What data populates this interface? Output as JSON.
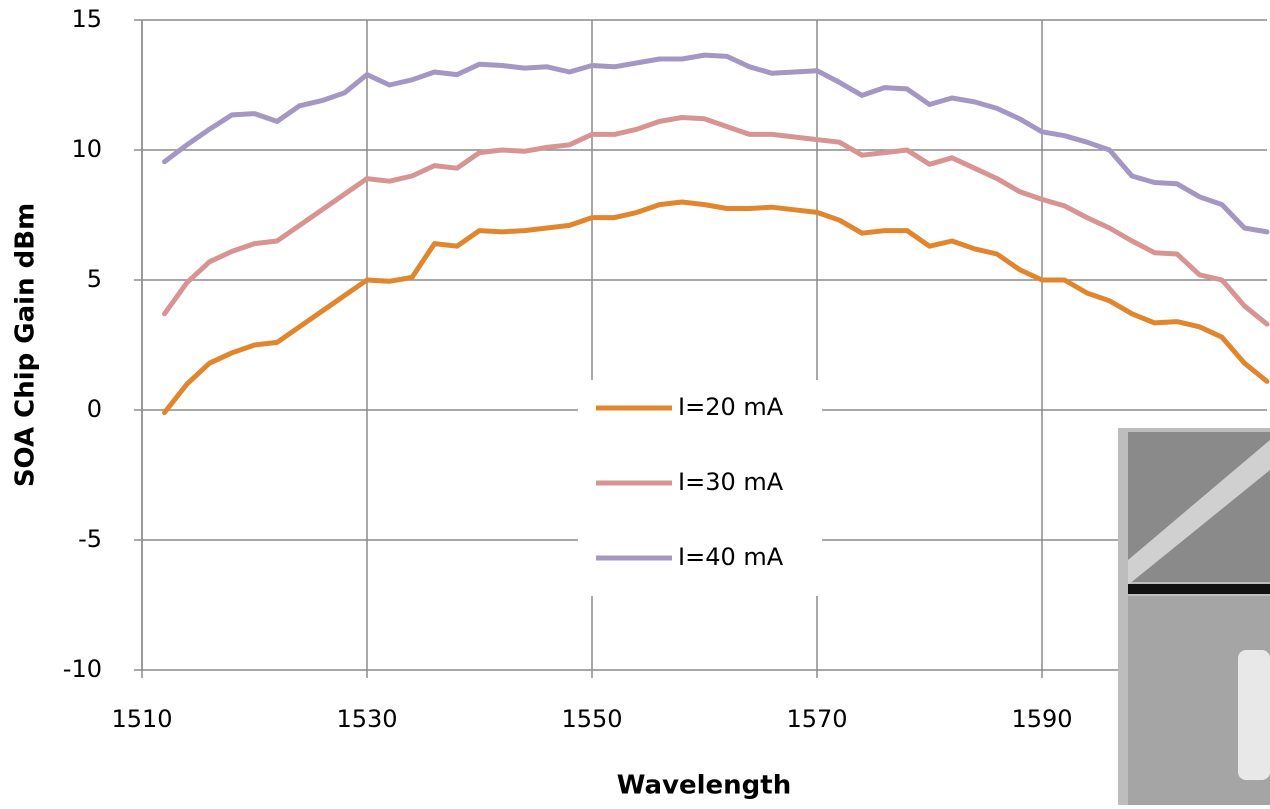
{
  "chart_data": {
    "type": "line",
    "x_label": "Wavelength",
    "y_label": "SOA Chip Gain dBm",
    "x": [
      1512,
      1514,
      1516,
      1518,
      1520,
      1522,
      1524,
      1526,
      1528,
      1530,
      1532,
      1534,
      1536,
      1538,
      1540,
      1542,
      1544,
      1546,
      1548,
      1550,
      1552,
      1554,
      1556,
      1558,
      1560,
      1562,
      1564,
      1566,
      1568,
      1570,
      1572,
      1574,
      1576,
      1578,
      1580,
      1582,
      1584,
      1586,
      1588,
      1590,
      1592,
      1594,
      1596,
      1598,
      1600,
      1602,
      1604,
      1606,
      1608,
      1610
    ],
    "series": [
      {
        "name": "I=20 mA",
        "color": "#e2862e",
        "values": [
          -0.1,
          1.0,
          1.8,
          2.2,
          2.5,
          2.6,
          3.2,
          3.8,
          4.4,
          5.0,
          4.95,
          5.1,
          6.4,
          6.3,
          6.9,
          6.85,
          6.9,
          7.0,
          7.1,
          7.4,
          7.4,
          7.6,
          7.9,
          8.0,
          7.9,
          7.75,
          7.75,
          7.8,
          7.7,
          7.6,
          7.3,
          6.8,
          6.9,
          6.9,
          6.3,
          6.5,
          6.2,
          6.0,
          5.4,
          5.0,
          5.0,
          4.5,
          4.2,
          3.7,
          3.35,
          3.4,
          3.2,
          2.8,
          1.8,
          1.1
        ]
      },
      {
        "name": "I=30 mA",
        "color": "#d79493",
        "values": [
          3.7,
          4.9,
          5.7,
          6.1,
          6.4,
          6.5,
          7.1,
          7.7,
          8.3,
          8.9,
          8.8,
          9.0,
          9.4,
          9.3,
          9.9,
          10.0,
          9.95,
          10.1,
          10.2,
          10.6,
          10.6,
          10.8,
          11.1,
          11.25,
          11.2,
          10.9,
          10.6,
          10.6,
          10.5,
          10.4,
          10.3,
          9.8,
          9.9,
          10.0,
          9.45,
          9.7,
          9.3,
          8.9,
          8.4,
          8.1,
          7.85,
          7.4,
          7.0,
          6.5,
          6.05,
          6.0,
          5.2,
          5.0,
          4.0,
          3.3
        ]
      },
      {
        "name": "I=40 mA",
        "color": "#a497c4",
        "values": [
          9.55,
          10.2,
          10.8,
          11.35,
          11.4,
          11.1,
          11.7,
          11.9,
          12.2,
          12.9,
          12.5,
          12.7,
          13.0,
          12.9,
          13.3,
          13.25,
          13.15,
          13.2,
          13.0,
          13.25,
          13.2,
          13.35,
          13.5,
          13.5,
          13.65,
          13.6,
          13.2,
          12.95,
          13.0,
          13.05,
          12.6,
          12.1,
          12.4,
          12.35,
          11.75,
          12.0,
          11.85,
          11.6,
          11.2,
          10.7,
          10.55,
          10.3,
          10.0,
          9.0,
          8.75,
          8.7,
          8.2,
          7.9,
          7.0,
          6.85
        ]
      }
    ],
    "xlim": [
      1510,
      1610
    ],
    "xticks": [
      1510,
      1530,
      1550,
      1570,
      1590
    ],
    "ylim": [
      -10,
      15
    ],
    "yticks": [
      -10,
      -5,
      0,
      5,
      10,
      15
    ],
    "grid": true
  }
}
